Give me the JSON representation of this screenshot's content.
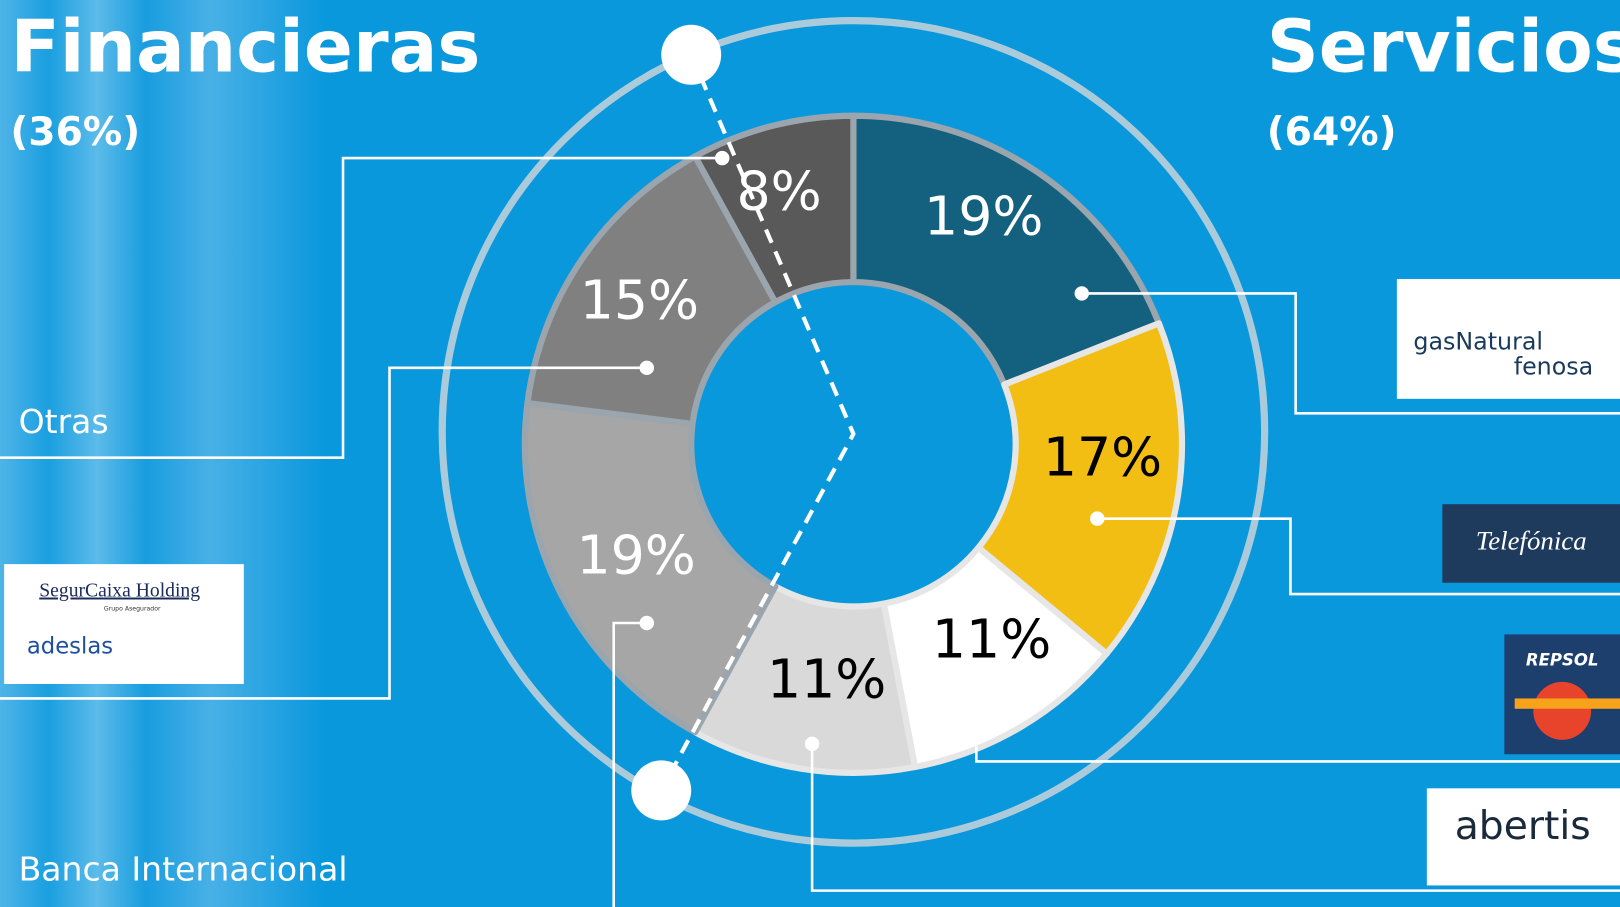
{
  "groups": [
    {
      "title": "Financieras",
      "share": "(36%)"
    },
    {
      "title": "Servicios",
      "share": "(64%)"
    }
  ],
  "labels": [
    "Otras",
    "Banca Internacional"
  ],
  "logos": [
    "SegurCaixa Holding",
    "Grupo Asegurador",
    "adeslas",
    "gasNatural",
    "fenosa",
    "Telefónica",
    "REPSOL",
    "abertis"
  ],
  "chart_data": {
    "type": "pie",
    "values": [
      19,
      17,
      11,
      11,
      19,
      15,
      8
    ],
    "value_labels": [
      "19%",
      "17%",
      "11%",
      "11%",
      "19%",
      "15%",
      "8%"
    ],
    "colors": [
      "#14607f",
      "#f2be14",
      "#ffffff",
      "#d9d9d9",
      "#a6a6a6",
      "#808080",
      "#595959"
    ]
  }
}
